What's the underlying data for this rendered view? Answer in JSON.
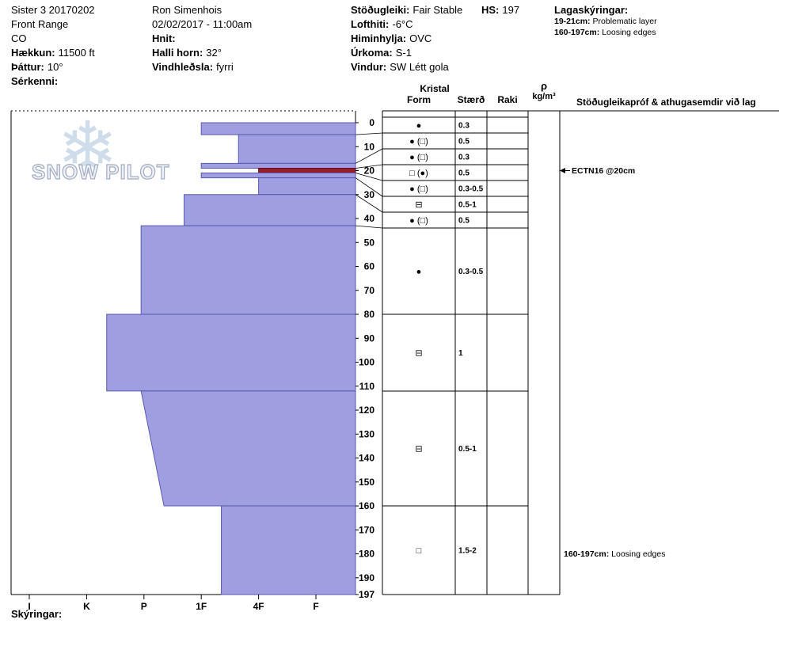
{
  "header": {
    "pit_name": "Sister 3 20170202",
    "range": "Front Range",
    "state": "CO",
    "elevation_label": "Hækkun:",
    "elevation_value": "11500 ft",
    "aspect_label": "Þáttur:",
    "aspect_value": "10°",
    "special_label": "Sérkenni:",
    "observer": "Ron Simenhois",
    "datetime": "02/02/2017 - 11:00am",
    "coords_label": "Hnit:",
    "slope_label": "Halli horn:",
    "slope_value": "32°",
    "windloading_label": "Vindhleðsla:",
    "windloading_value": "fyrri",
    "stability_label": "Stöðugleiki:",
    "stability_value": "Fair Stable",
    "airtemp_label": "Lofthiti:",
    "airtemp_value": "-6°C",
    "sky_label": "Himinhylja:",
    "sky_value": "OVC",
    "precip_label": "Úrkoma:",
    "precip_value": "S-1",
    "wind_label": "Vindur:",
    "wind_value": "SW Létt gola",
    "hs_label": "HS:",
    "hs_value": "197",
    "layer_notes_label": "Lagaskýringar:",
    "layer_notes": [
      {
        "range": "19-21cm:",
        "text": "Problematic layer"
      },
      {
        "range": "160-197cm:",
        "text": "Loosing edges"
      }
    ]
  },
  "logo": {
    "snowflake": "❄",
    "text": "SNOW PILOT"
  },
  "table_headers": {
    "kristal": "Kristal",
    "form": "Form",
    "size": "Stærð",
    "wetness": "Raki",
    "density_symbol": "ρ",
    "density_units": "kg/m³",
    "comments": "Stöðugleikapróf & athugasemdir við lag"
  },
  "footer": {
    "notes_label": "Skýringar:"
  },
  "chart_data": {
    "type": "bar",
    "subtype": "snow-hardness-profile",
    "title": "Snow pit hardness profile, depth 0-197 cm, hand hardness I-K-P-1F-4F-F",
    "depth_unit": "cm",
    "total_depth_cm": 197,
    "depth_ticks": [
      0,
      10,
      20,
      30,
      40,
      50,
      60,
      70,
      80,
      90,
      100,
      110,
      120,
      130,
      140,
      150,
      160,
      170,
      180,
      190,
      197
    ],
    "hardness_axis_labels": [
      "I",
      "K",
      "P",
      "1F",
      "4F",
      "F"
    ],
    "layers": [
      {
        "top_cm": 0,
        "bottom_cm": 5,
        "hardness": "1F",
        "h": 3,
        "grain_form": "●",
        "grain_size_mm": "0.3"
      },
      {
        "top_cm": 5,
        "bottom_cm": 17,
        "hardness": "4F-1F",
        "h": 2.35,
        "grain_form": "● (□)",
        "grain_size_mm": "0.5"
      },
      {
        "top_cm": 17,
        "bottom_cm": 19,
        "hardness": "1F",
        "h": 3,
        "grain_form": "● (□)",
        "grain_size_mm": "0.3"
      },
      {
        "top_cm": 19,
        "bottom_cm": 21,
        "hardness": "4F",
        "h": 2,
        "grain_form": "□ (●)",
        "grain_size_mm": "0.5",
        "flagged": true
      },
      {
        "top_cm": 21,
        "bottom_cm": 23,
        "hardness": "1F",
        "h": 3,
        "grain_form": "● (□)",
        "grain_size_mm": "0.3-0.5"
      },
      {
        "top_cm": 23,
        "bottom_cm": 30,
        "hardness": "4F",
        "h": 2,
        "grain_form": "⊟",
        "grain_size_mm": "0.5-1"
      },
      {
        "top_cm": 30,
        "bottom_cm": 43,
        "hardness": "1F+",
        "h": 3.3,
        "grain_form": "● (□)",
        "grain_size_mm": "0.5"
      },
      {
        "top_cm": 43,
        "bottom_cm": 80,
        "hardness": "P",
        "h": 4.05,
        "grain_form": "●",
        "grain_size_mm": "0.3-0.5"
      },
      {
        "top_cm": 80,
        "bottom_cm": 112,
        "hardness": "P-K",
        "h": 4.65,
        "grain_form": "⊟",
        "grain_size_mm": "1"
      },
      {
        "top_cm": 112,
        "bottom_cm": 160,
        "hardness": "P",
        "h": 4.05,
        "h_bottom": 3.65,
        "grain_form": "⊟",
        "grain_size_mm": "0.5-1"
      },
      {
        "top_cm": 160,
        "bottom_cm": 197,
        "hardness": "1F-",
        "h": 2.65,
        "grain_form": "□",
        "grain_size_mm": "1.5-2"
      }
    ],
    "annotations": [
      {
        "depth_cm": 20,
        "arrow": true,
        "bold": "ECTN16 @20cm",
        "text": ""
      },
      {
        "depth_cm": 180,
        "arrow": false,
        "bold": "160-197cm:",
        "text": " Loosing edges"
      }
    ],
    "colors": {
      "layer_fill": "#9f9ee1",
      "layer_stroke": "#5a58b0",
      "flagged_fill": "#961e2e",
      "flagged_stroke": "#5e0d1a"
    }
  }
}
